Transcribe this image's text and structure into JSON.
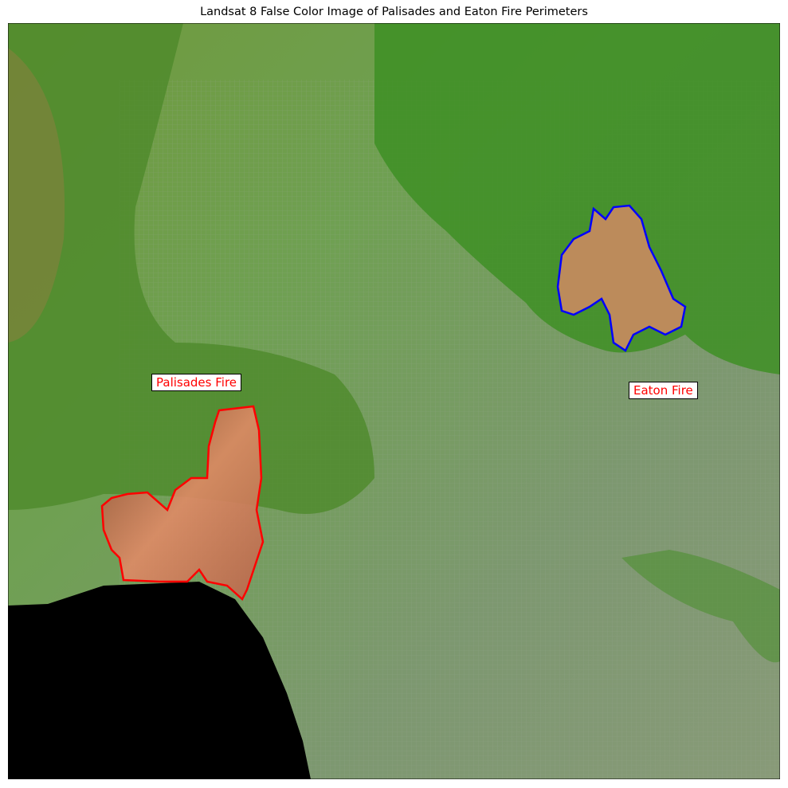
{
  "title": "Landsat 8 False Color Image of Palisades and Eaton Fire Perimeters",
  "map": {
    "imagery": "Landsat 8 false color composite",
    "layers": [
      {
        "name": "Palisades Fire",
        "outline_color": "#ff0000",
        "label_color": "#ff0000"
      },
      {
        "name": "Eaton Fire",
        "outline_color": "#0000ff",
        "label_color": "#ff0000"
      }
    ],
    "colors": {
      "vegetation": "#5aa832",
      "urban": "#7f9a6a",
      "burn_scar": "#d9825e",
      "ocean": "#000000"
    }
  }
}
